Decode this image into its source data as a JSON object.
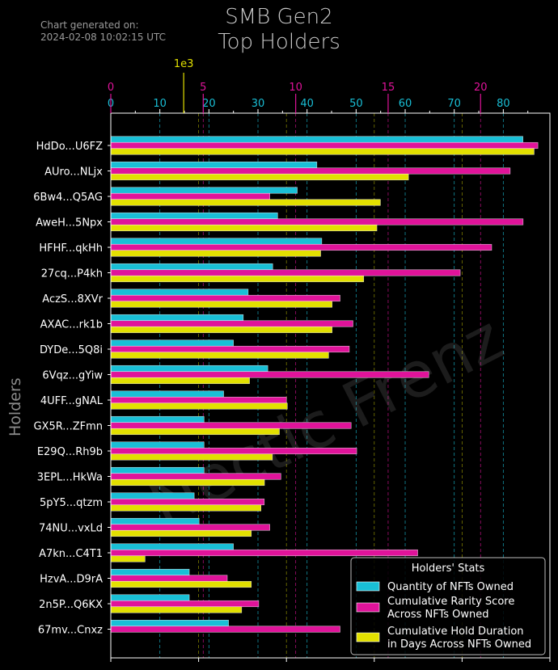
{
  "generated": {
    "label": "Chart generated on:",
    "timestamp": "2024-02-08 10:02:15 UTC"
  },
  "watermark": "Nectic Frenz",
  "chart_data": {
    "type": "bar",
    "orientation": "horizontal",
    "title": "SMB Gen2\nTop Holders",
    "title_lines": [
      "SMB Gen2",
      "Top Holders"
    ],
    "ylabel": "Holders",
    "categories": [
      "HdDo...U6FZ",
      "AUro...NLjx",
      "6Bw4...Q5AG",
      "AweH...5Npx",
      "HFHF...qkHh",
      "27cq...P4kh",
      "AczS...8XVr",
      "AXAC...rk1b",
      "DYDe...5Q8i",
      "6Vqz...gYiw",
      "4UFF...gNAL",
      "GX5R...ZFmn",
      "E29Q...Rh9b",
      "3EPL...HkWa",
      "5pY5...qtzm",
      "74NU...vxLd",
      "A7kn...C4T1",
      "HzvA...D9rA",
      "2n5P...Q6KX",
      "67mv...Cnxz"
    ],
    "legend_title": "Holders' Stats",
    "legend_placement": "lower-right",
    "axes": [
      {
        "series": "Quantity of NFTs Owned",
        "ticks": [
          0,
          10,
          20,
          30,
          40,
          50,
          60,
          70,
          80
        ],
        "range": [
          0,
          89.5
        ],
        "color": "#19bfd6"
      },
      {
        "series": "Cumulative Rarity Score Across NFTs Owned",
        "ticks": [
          0,
          5,
          10,
          15,
          20
        ],
        "range": [
          0,
          23.75
        ],
        "color": "#e0139a"
      },
      {
        "series": "Cumulative Hold Duration in Days Across NFTs Owned",
        "ticks": [],
        "range": [
          0,
          5000
        ],
        "offset_label": "1e3",
        "color": "#e2e000"
      }
    ],
    "series": [
      {
        "name": "Quantity of NFTs Owned",
        "color": "#19bfd6",
        "values": [
          84,
          42,
          38,
          34,
          43,
          33,
          28,
          27,
          25,
          32,
          23,
          19,
          19,
          19,
          17,
          18,
          25,
          16,
          16,
          24
        ]
      },
      {
        "name": "Cumulative Rarity Score Across NFTs Owned",
        "color": "#e0139a",
        "values": [
          23.1,
          21.6,
          8.6,
          22.3,
          20.6,
          18.9,
          12.4,
          13.1,
          12.9,
          17.2,
          9.5,
          13.0,
          13.3,
          9.2,
          8.3,
          8.6,
          16.6,
          6.3,
          8.0,
          12.4
        ]
      },
      {
        "name": "Cumulative Hold Duration in Days Across NFTs Owned",
        "color": "#e2e000",
        "values": [
          4820,
          3390,
          3070,
          3030,
          2390,
          2880,
          2520,
          2520,
          2480,
          1580,
          2010,
          1920,
          1840,
          1750,
          1710,
          1600,
          390,
          1600,
          1490,
          0
        ]
      }
    ],
    "grid": true
  }
}
